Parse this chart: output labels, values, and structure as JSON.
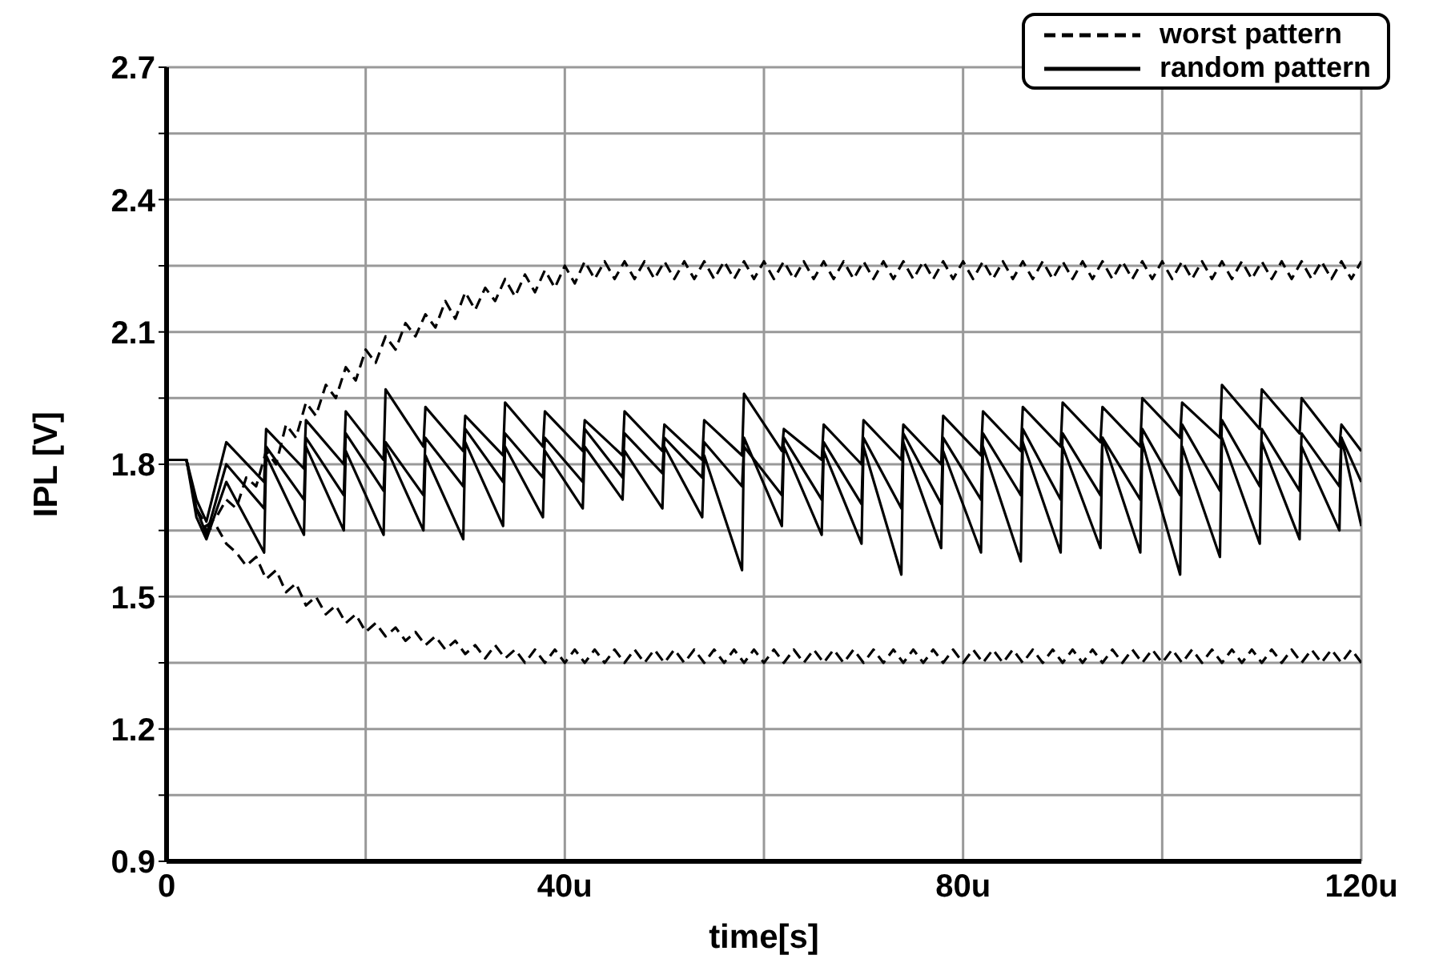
{
  "chart_data": {
    "type": "line",
    "xlabel": "time[s]",
    "ylabel": "IPL [V]",
    "xlim": [
      0,
      120
    ],
    "xticks": [
      0,
      {
        "value": 20,
        "label": null
      },
      {
        "value": 40,
        "label": "40u"
      },
      {
        "value": 60,
        "label": null
      },
      {
        "value": 80,
        "label": "80u"
      },
      {
        "value": 100,
        "label": null
      },
      {
        "value": 120,
        "label": "120u"
      }
    ],
    "ylim": [
      0.9,
      2.7
    ],
    "yticks": [
      0.9,
      {
        "value": 1.05,
        "label": null
      },
      1.2,
      {
        "value": 1.35,
        "label": null
      },
      1.5,
      {
        "value": 1.65,
        "label": null
      },
      1.8,
      {
        "value": 1.95,
        "label": null
      },
      2.1,
      {
        "value": 2.25,
        "label": null
      },
      2.4,
      {
        "value": 2.55,
        "label": null
      },
      2.7
    ],
    "grid": true,
    "legend": "top right",
    "series": [
      {
        "name": "worst pattern",
        "color": "#000000",
        "line_style": "dashed",
        "x": [
          0,
          1,
          2,
          3,
          4,
          5,
          6,
          7,
          8,
          9,
          10,
          11,
          12,
          13,
          14,
          15,
          16,
          17,
          18,
          19,
          20,
          21,
          22,
          23,
          24,
          25,
          26,
          27,
          28,
          29,
          30,
          31,
          32,
          33,
          34,
          35,
          36,
          37,
          38,
          39,
          40,
          41,
          42,
          43,
          44,
          45,
          46,
          47,
          48,
          49,
          50,
          51,
          52,
          53,
          54,
          55,
          56,
          57,
          58,
          59,
          60,
          61,
          62,
          63,
          64,
          65,
          66,
          67,
          68,
          69,
          70,
          71,
          72,
          73,
          74,
          75,
          76,
          77,
          78,
          79,
          80,
          81,
          82,
          83,
          84,
          85,
          86,
          87,
          88,
          89,
          90,
          91,
          92,
          93,
          94,
          95,
          96,
          97,
          98,
          99,
          100,
          101,
          102,
          103,
          104,
          105,
          106,
          107,
          108,
          109,
          110,
          111,
          112,
          113,
          114,
          115,
          116,
          117,
          118,
          119,
          120
        ],
        "values": [
          1.81,
          1.81,
          1.81,
          1.7,
          1.66,
          1.68,
          1.72,
          1.7,
          1.77,
          1.75,
          1.83,
          1.8,
          1.89,
          1.86,
          1.94,
          1.91,
          1.98,
          1.95,
          2.02,
          1.99,
          2.06,
          2.03,
          2.09,
          2.06,
          2.12,
          2.09,
          2.14,
          2.11,
          2.17,
          2.13,
          2.19,
          2.15,
          2.2,
          2.17,
          2.22,
          2.18,
          2.23,
          2.19,
          2.24,
          2.2,
          2.25,
          2.21,
          2.26,
          2.22,
          2.26,
          2.22,
          2.26,
          2.22,
          2.26,
          2.22,
          2.26,
          2.22,
          2.26,
          2.22,
          2.26,
          2.22,
          2.26,
          2.22,
          2.26,
          2.22,
          2.26,
          2.22,
          2.26,
          2.22,
          2.26,
          2.22,
          2.26,
          2.22,
          2.26,
          2.22,
          2.26,
          2.22,
          2.26,
          2.22,
          2.26,
          2.22,
          2.26,
          2.22,
          2.26,
          2.22,
          2.26,
          2.22,
          2.26,
          2.22,
          2.26,
          2.22,
          2.26,
          2.22,
          2.26,
          2.22,
          2.26,
          2.22,
          2.26,
          2.22,
          2.26,
          2.22,
          2.26,
          2.22,
          2.26,
          2.22,
          2.26,
          2.22,
          2.26,
          2.22,
          2.26,
          2.22,
          2.26,
          2.22,
          2.26,
          2.22,
          2.26,
          2.22,
          2.26,
          2.22,
          2.26,
          2.22,
          2.26,
          2.22,
          2.26,
          2.22,
          2.26
        ]
      },
      {
        "color": "#000000",
        "line_style": "dashed",
        "x": [
          0,
          1,
          2,
          3,
          4,
          5,
          6,
          7,
          8,
          9,
          10,
          11,
          12,
          13,
          14,
          15,
          16,
          17,
          18,
          19,
          20,
          21,
          22,
          23,
          24,
          25,
          26,
          27,
          28,
          29,
          30,
          31,
          32,
          33,
          34,
          35,
          36,
          37,
          38,
          39,
          40,
          41,
          42,
          43,
          44,
          45,
          46,
          47,
          48,
          49,
          50,
          51,
          52,
          53,
          54,
          55,
          56,
          57,
          58,
          59,
          60,
          61,
          62,
          63,
          64,
          65,
          66,
          67,
          68,
          69,
          70,
          71,
          72,
          73,
          74,
          75,
          76,
          77,
          78,
          79,
          80,
          81,
          82,
          83,
          84,
          85,
          86,
          87,
          88,
          89,
          90,
          91,
          92,
          93,
          94,
          95,
          96,
          97,
          98,
          99,
          100,
          101,
          102,
          103,
          104,
          105,
          106,
          107,
          108,
          109,
          110,
          111,
          112,
          113,
          114,
          115,
          116,
          117,
          118,
          119,
          120
        ],
        "values": [
          1.81,
          1.81,
          1.81,
          1.7,
          1.65,
          1.66,
          1.62,
          1.6,
          1.57,
          1.59,
          1.54,
          1.56,
          1.51,
          1.53,
          1.48,
          1.5,
          1.46,
          1.48,
          1.44,
          1.46,
          1.42,
          1.44,
          1.41,
          1.43,
          1.4,
          1.42,
          1.39,
          1.41,
          1.38,
          1.4,
          1.37,
          1.39,
          1.36,
          1.39,
          1.36,
          1.38,
          1.35,
          1.38,
          1.35,
          1.38,
          1.35,
          1.38,
          1.35,
          1.38,
          1.35,
          1.38,
          1.35,
          1.38,
          1.35,
          1.38,
          1.35,
          1.38,
          1.35,
          1.38,
          1.35,
          1.38,
          1.35,
          1.38,
          1.35,
          1.38,
          1.35,
          1.38,
          1.35,
          1.38,
          1.35,
          1.38,
          1.35,
          1.38,
          1.35,
          1.38,
          1.35,
          1.38,
          1.35,
          1.38,
          1.35,
          1.38,
          1.35,
          1.38,
          1.35,
          1.38,
          1.35,
          1.38,
          1.35,
          1.38,
          1.35,
          1.38,
          1.35,
          1.38,
          1.35,
          1.38,
          1.35,
          1.38,
          1.35,
          1.38,
          1.35,
          1.38,
          1.35,
          1.38,
          1.35,
          1.38,
          1.35,
          1.38,
          1.35,
          1.38,
          1.35,
          1.38,
          1.35,
          1.38,
          1.35,
          1.38,
          1.35,
          1.38,
          1.35,
          1.38,
          1.35,
          1.38,
          1.35,
          1.38,
          1.35,
          1.38,
          1.35
        ]
      },
      {
        "name": "random pattern",
        "color": "#000000",
        "line_style": "solid",
        "x": [
          0,
          2,
          3,
          4,
          6,
          9.8,
          10,
          13.8,
          14,
          17.8,
          18,
          21.8,
          22,
          25.8,
          26,
          29.8,
          30,
          33.8,
          34,
          37.8,
          38,
          41.8,
          42,
          45.8,
          46,
          49.8,
          50,
          53.8,
          54,
          57.8,
          58,
          61.8,
          62,
          65.8,
          66,
          69.8,
          70,
          73.8,
          74,
          77.8,
          78,
          81.8,
          82,
          85.8,
          86,
          89.8,
          90,
          93.8,
          94,
          97.8,
          98,
          101.8,
          102,
          105.8,
          106,
          109.8,
          110,
          113.8,
          114,
          117.8,
          118,
          120
        ],
        "values": [
          1.81,
          1.81,
          1.72,
          1.67,
          1.85,
          1.76,
          1.88,
          1.79,
          1.9,
          1.8,
          1.92,
          1.81,
          1.97,
          1.84,
          1.93,
          1.83,
          1.91,
          1.82,
          1.94,
          1.84,
          1.92,
          1.83,
          1.9,
          1.82,
          1.92,
          1.83,
          1.89,
          1.81,
          1.9,
          1.82,
          1.96,
          1.83,
          1.88,
          1.81,
          1.89,
          1.8,
          1.9,
          1.81,
          1.89,
          1.8,
          1.91,
          1.82,
          1.92,
          1.83,
          1.93,
          1.84,
          1.94,
          1.85,
          1.93,
          1.84,
          1.95,
          1.86,
          1.94,
          1.86,
          1.98,
          1.88,
          1.97,
          1.87,
          1.95,
          1.84,
          1.89,
          1.83
        ]
      },
      {
        "color": "#000000",
        "line_style": "solid",
        "x": [
          0,
          2,
          3,
          4,
          6,
          9.8,
          10,
          13.8,
          14,
          17.8,
          18,
          21.8,
          22,
          25.8,
          26,
          29.8,
          30,
          33.8,
          34,
          37.8,
          38,
          41.8,
          42,
          45.8,
          46,
          49.8,
          50,
          53.8,
          54,
          57.8,
          58,
          61.8,
          62,
          65.8,
          66,
          69.8,
          70,
          73.8,
          74,
          77.8,
          78,
          81.8,
          82,
          85.8,
          86,
          89.8,
          90,
          93.8,
          94,
          97.8,
          98,
          101.8,
          102,
          105.8,
          106,
          109.8,
          110,
          113.8,
          114,
          117.8,
          118,
          120
        ],
        "values": [
          1.81,
          1.81,
          1.7,
          1.64,
          1.8,
          1.7,
          1.84,
          1.72,
          1.86,
          1.73,
          1.87,
          1.74,
          1.85,
          1.73,
          1.86,
          1.75,
          1.88,
          1.76,
          1.87,
          1.77,
          1.86,
          1.76,
          1.88,
          1.77,
          1.87,
          1.78,
          1.86,
          1.77,
          1.85,
          1.75,
          1.84,
          1.73,
          1.86,
          1.72,
          1.85,
          1.71,
          1.86,
          1.7,
          1.87,
          1.71,
          1.86,
          1.72,
          1.87,
          1.73,
          1.88,
          1.72,
          1.87,
          1.73,
          1.86,
          1.72,
          1.88,
          1.73,
          1.89,
          1.74,
          1.9,
          1.75,
          1.88,
          1.74,
          1.87,
          1.75,
          1.86,
          1.76
        ]
      },
      {
        "color": "#000000",
        "line_style": "solid",
        "x": [
          0,
          2,
          3,
          4,
          6,
          9.8,
          10,
          13.8,
          14,
          17.8,
          18,
          21.8,
          22,
          25.8,
          26,
          29.8,
          30,
          33.8,
          34,
          37.8,
          38,
          41.8,
          42,
          45.8,
          46,
          49.8,
          50,
          53.8,
          54,
          57.8,
          58,
          61.8,
          62,
          65.8,
          66,
          69.8,
          70,
          73.8,
          74,
          77.8,
          78,
          81.8,
          82,
          85.8,
          86,
          89.8,
          90,
          93.8,
          94,
          97.8,
          98,
          101.8,
          102,
          105.8,
          106,
          109.8,
          110,
          113.8,
          114,
          117.8,
          118,
          120
        ],
        "values": [
          1.81,
          1.81,
          1.68,
          1.63,
          1.76,
          1.6,
          1.82,
          1.64,
          1.84,
          1.65,
          1.83,
          1.64,
          1.84,
          1.65,
          1.82,
          1.63,
          1.85,
          1.66,
          1.84,
          1.68,
          1.83,
          1.7,
          1.84,
          1.72,
          1.83,
          1.7,
          1.84,
          1.68,
          1.82,
          1.56,
          1.86,
          1.66,
          1.84,
          1.64,
          1.83,
          1.62,
          1.84,
          1.55,
          1.85,
          1.61,
          1.83,
          1.6,
          1.84,
          1.58,
          1.85,
          1.6,
          1.84,
          1.61,
          1.86,
          1.6,
          1.85,
          1.55,
          1.84,
          1.59,
          1.86,
          1.62,
          1.85,
          1.63,
          1.84,
          1.65,
          1.86,
          1.66
        ]
      }
    ]
  }
}
